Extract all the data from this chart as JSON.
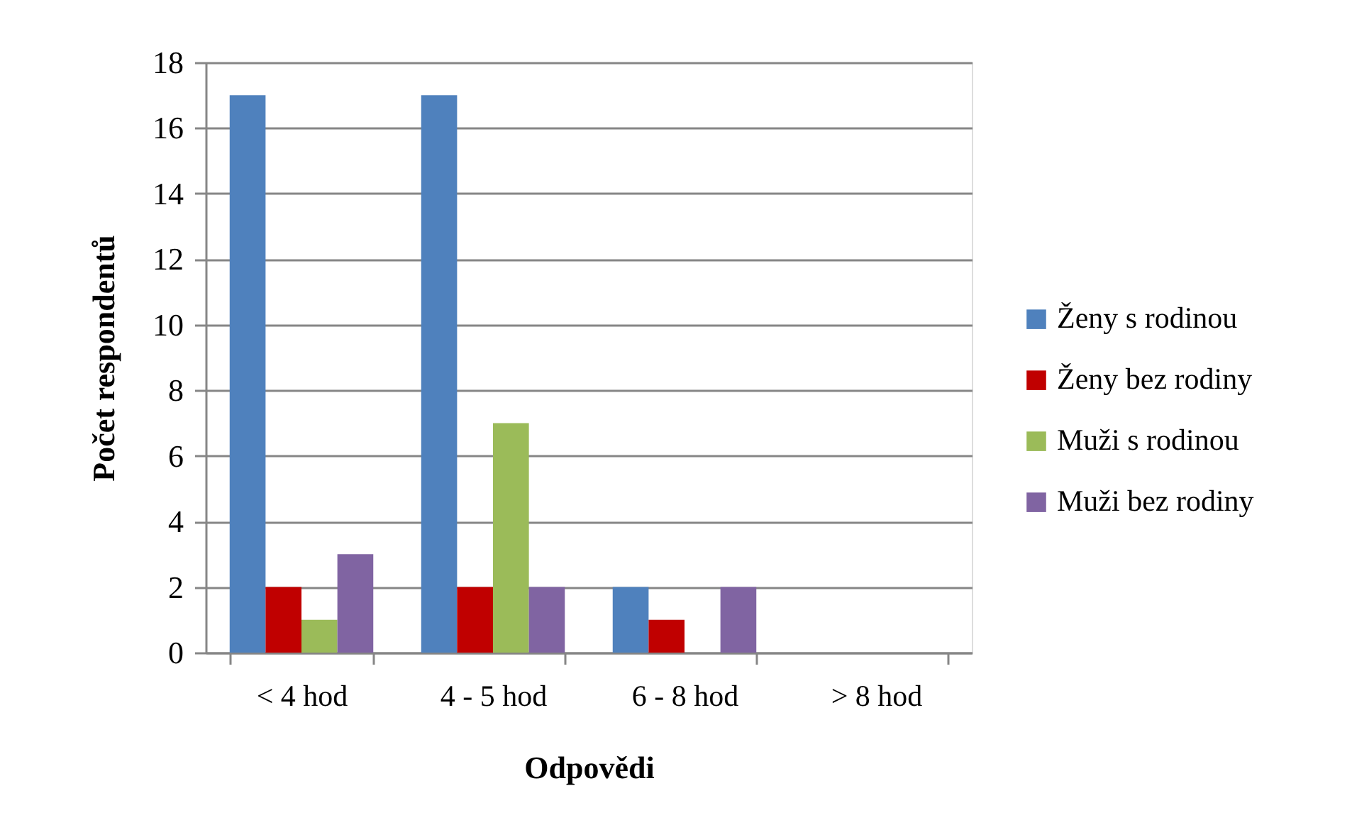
{
  "chart_data": {
    "type": "bar",
    "xlabel": "Odpovědi",
    "ylabel": "Počet respondentů",
    "categories": [
      "< 4 hod",
      "4 - 5 hod",
      "6 - 8 hod",
      "> 8 hod"
    ],
    "series": [
      {
        "name": "Ženy s rodinou",
        "color": "#4f81bd",
        "values": [
          17,
          17,
          2,
          0
        ]
      },
      {
        "name": "Ženy bez rodiny",
        "color": "#c00000",
        "values": [
          2,
          2,
          1,
          0
        ]
      },
      {
        "name": "Muži s rodinou",
        "color": "#9bbb59",
        "values": [
          1,
          7,
          0,
          0
        ]
      },
      {
        "name": "Muži bez rodiny",
        "color": "#8064a2",
        "values": [
          3,
          2,
          2,
          0
        ]
      }
    ],
    "ylim": [
      0,
      18
    ],
    "yticks": [
      0,
      2,
      4,
      6,
      8,
      10,
      12,
      14,
      16,
      18
    ],
    "grid": "y",
    "legend": "right"
  }
}
